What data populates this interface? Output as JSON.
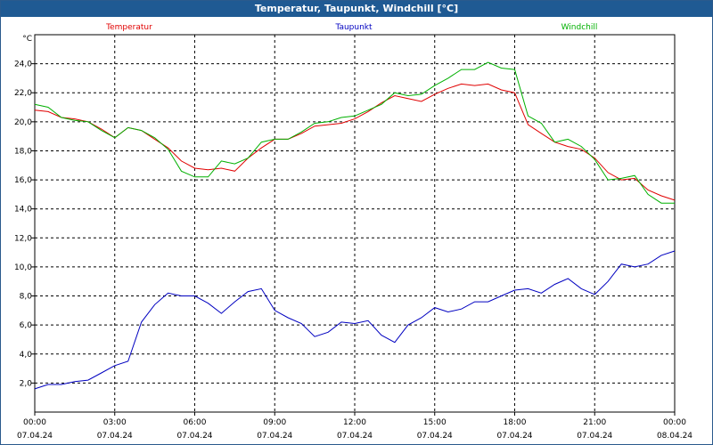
{
  "chart_data": {
    "type": "line",
    "title": "Temperatur, Taupunkt, Windchill [°C]",
    "ylabel": "°C",
    "xlabel": "",
    "ylim": [
      0,
      26
    ],
    "xlim": [
      0,
      24
    ],
    "y_ticks": [
      "2,0",
      "4,0",
      "6,0",
      "8,0",
      "10,0",
      "12,0",
      "14,0",
      "16,0",
      "18,0",
      "20,0",
      "22,0",
      "24,0"
    ],
    "x_ticks": [
      {
        "time": "00:00",
        "date": "07.04.24"
      },
      {
        "time": "03:00",
        "date": "07.04.24"
      },
      {
        "time": "06:00",
        "date": "07.04.24"
      },
      {
        "time": "09:00",
        "date": "07.04.24"
      },
      {
        "time": "12:00",
        "date": "07.04.24"
      },
      {
        "time": "15:00",
        "date": "07.04.24"
      },
      {
        "time": "18:00",
        "date": "07.04.24"
      },
      {
        "time": "21:00",
        "date": "07.04.24"
      },
      {
        "time": "00:00",
        "date": "08.04.24"
      }
    ],
    "grid": true,
    "series": [
      {
        "name": "Temperatur",
        "color": "#e00000",
        "x": [
          0,
          0.5,
          1,
          1.5,
          2,
          2.5,
          3,
          3.5,
          4,
          4.5,
          5,
          5.5,
          6,
          6.5,
          7,
          7.5,
          8,
          8.5,
          9,
          9.5,
          10,
          10.5,
          11,
          11.5,
          12,
          12.5,
          13,
          13.5,
          14,
          14.5,
          15,
          15.5,
          16,
          16.5,
          17,
          17.5,
          18,
          18.5,
          19,
          19.5,
          20,
          20.5,
          21,
          21.5,
          22,
          22.5,
          23,
          23.5,
          24
        ],
        "values": [
          20.8,
          20.7,
          20.3,
          20.2,
          20.0,
          19.5,
          18.9,
          19.6,
          19.4,
          18.8,
          18.2,
          17.3,
          16.8,
          16.7,
          16.8,
          16.6,
          17.5,
          18.2,
          18.8,
          18.8,
          19.2,
          19.7,
          19.8,
          19.9,
          20.2,
          20.7,
          21.3,
          21.8,
          21.6,
          21.4,
          21.9,
          22.3,
          22.6,
          22.5,
          22.6,
          22.2,
          22.0,
          19.8,
          19.2,
          18.6,
          18.3,
          18.1,
          17.5,
          16.5,
          16.0,
          16.1,
          15.3,
          14.9,
          14.6
        ]
      },
      {
        "name": "Taupunkt",
        "color": "#0000c0",
        "x": [
          0,
          0.5,
          1,
          1.5,
          2,
          2.5,
          3,
          3.5,
          4,
          4.5,
          5,
          5.5,
          6,
          6.5,
          7,
          7.5,
          8,
          8.5,
          9,
          9.5,
          10,
          10.5,
          11,
          11.5,
          12,
          12.5,
          13,
          13.5,
          14,
          14.5,
          15,
          15.5,
          16,
          16.5,
          17,
          17.5,
          18,
          18.5,
          19,
          19.5,
          20,
          20.5,
          21,
          21.5,
          22,
          22.5,
          23,
          23.5,
          24
        ],
        "values": [
          1.6,
          1.9,
          1.9,
          2.1,
          2.2,
          2.7,
          3.2,
          3.5,
          6.2,
          7.4,
          8.2,
          8.0,
          8.0,
          7.5,
          6.8,
          7.6,
          8.3,
          8.5,
          7.0,
          6.5,
          6.1,
          5.2,
          5.5,
          6.2,
          6.1,
          6.3,
          5.3,
          4.8,
          6.0,
          6.5,
          7.2,
          6.9,
          7.1,
          7.6,
          7.6,
          8.0,
          8.4,
          8.5,
          8.2,
          8.8,
          9.2,
          8.5,
          8.1,
          9.0,
          10.2,
          10.0,
          10.2,
          10.8,
          11.1
        ]
      },
      {
        "name": "Windchill",
        "color": "#00b000",
        "x": [
          0,
          0.5,
          1,
          1.5,
          2,
          2.5,
          3,
          3.5,
          4,
          4.5,
          5,
          5.5,
          6,
          6.5,
          7,
          7.5,
          8,
          8.5,
          9,
          9.5,
          10,
          10.5,
          11,
          11.5,
          12,
          12.5,
          13,
          13.5,
          14,
          14.5,
          15,
          15.5,
          16,
          16.5,
          17,
          17.5,
          18,
          18.5,
          19,
          19.5,
          20,
          20.5,
          21,
          21.5,
          22,
          22.5,
          23,
          23.5,
          24
        ],
        "values": [
          21.2,
          21.0,
          20.3,
          20.1,
          20.0,
          19.4,
          18.9,
          19.6,
          19.4,
          18.9,
          18.1,
          16.6,
          16.2,
          16.2,
          17.3,
          17.1,
          17.5,
          18.6,
          18.8,
          18.8,
          19.3,
          19.9,
          20.0,
          20.3,
          20.4,
          20.8,
          21.2,
          22.0,
          21.8,
          21.9,
          22.5,
          23.0,
          23.6,
          23.6,
          24.1,
          23.7,
          23.6,
          20.4,
          19.9,
          18.6,
          18.8,
          18.3,
          17.4,
          16.0,
          16.1,
          16.3,
          15.0,
          14.4,
          14.4
        ]
      }
    ]
  }
}
